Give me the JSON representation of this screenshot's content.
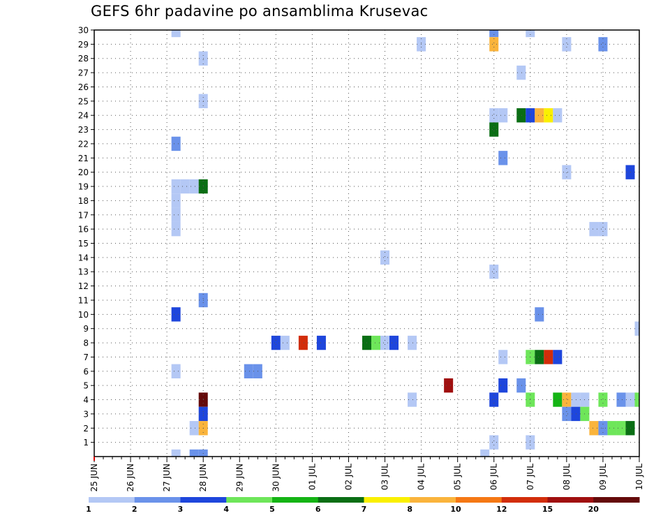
{
  "chart_data": {
    "type": "heatmap",
    "title": "GEFS 6hr padavine po ansamblima Krusevac",
    "y_ticks": [
      1,
      2,
      3,
      4,
      5,
      6,
      7,
      8,
      9,
      10,
      11,
      12,
      13,
      14,
      15,
      16,
      17,
      18,
      19,
      20,
      21,
      22,
      23,
      24,
      25,
      26,
      27,
      28,
      29,
      30
    ],
    "ylim": [
      0,
      30
    ],
    "x_ticks": [
      "25 JUN",
      "26 JUN",
      "27 JUN",
      "28 JUN",
      "29 JUN",
      "30 JUN",
      "01 JUL",
      "02 JUL",
      "03 JUL",
      "04 JUL",
      "05 JUL",
      "06 JUL",
      "07 JUL",
      "08 JUL",
      "09 JUL",
      "10 JUL"
    ],
    "xlim_steps": [
      0,
      60
    ],
    "step_hours": 6,
    "grid": true,
    "colorbar": {
      "levels": [
        "1",
        "2",
        "3",
        "4",
        "5",
        "6",
        "7",
        "8",
        "10",
        "12",
        "15",
        "20"
      ],
      "colors": [
        "#b4c8f5",
        "#6a92ea",
        "#1e46dc",
        "#6ee65a",
        "#14b414",
        "#0a6e14",
        "#faf000",
        "#fab43c",
        "#f57814",
        "#d22d0a",
        "#a00f0f",
        "#640a0a"
      ]
    },
    "cells": [
      {
        "member": 30,
        "step": 9,
        "cls": 0
      },
      {
        "member": 30,
        "step": 44,
        "cls": 1
      },
      {
        "member": 30,
        "step": 48,
        "cls": 0
      },
      {
        "member": 29,
        "step": 36,
        "cls": 0
      },
      {
        "member": 29,
        "step": 44,
        "cls": 7
      },
      {
        "member": 29,
        "step": 52,
        "cls": 0
      },
      {
        "member": 29,
        "step": 56,
        "cls": 1
      },
      {
        "member": 28,
        "step": 12,
        "cls": 0
      },
      {
        "member": 27,
        "step": 47,
        "cls": 0
      },
      {
        "member": 25,
        "step": 12,
        "cls": 0
      },
      {
        "member": 24,
        "step": 44,
        "cls": 0
      },
      {
        "member": 24,
        "step": 45,
        "cls": 0
      },
      {
        "member": 24,
        "step": 47,
        "cls": 5
      },
      {
        "member": 24,
        "step": 48,
        "cls": 2
      },
      {
        "member": 24,
        "step": 49,
        "cls": 7
      },
      {
        "member": 24,
        "step": 50,
        "cls": 6
      },
      {
        "member": 24,
        "step": 51,
        "cls": 0
      },
      {
        "member": 23,
        "step": 44,
        "cls": 5
      },
      {
        "member": 22,
        "step": 9,
        "cls": 1
      },
      {
        "member": 21,
        "step": 45,
        "cls": 1
      },
      {
        "member": 20,
        "step": 52,
        "cls": 0
      },
      {
        "member": 20,
        "step": 59,
        "cls": 2
      },
      {
        "member": 19,
        "step": 9,
        "cls": 0
      },
      {
        "member": 19,
        "step": 10,
        "cls": 0
      },
      {
        "member": 19,
        "step": 11,
        "cls": 0
      },
      {
        "member": 19,
        "step": 12,
        "cls": 5
      },
      {
        "member": 18,
        "step": 9,
        "cls": 0
      },
      {
        "member": 17,
        "step": 9,
        "cls": 0
      },
      {
        "member": 16,
        "step": 9,
        "cls": 0
      },
      {
        "member": 16,
        "step": 55,
        "cls": 0
      },
      {
        "member": 16,
        "step": 56,
        "cls": 0
      },
      {
        "member": 14,
        "step": 32,
        "cls": 0
      },
      {
        "member": 13,
        "step": 44,
        "cls": 0
      },
      {
        "member": 11,
        "step": 12,
        "cls": 1
      },
      {
        "member": 10,
        "step": 9,
        "cls": 2
      },
      {
        "member": 10,
        "step": 49,
        "cls": 1
      },
      {
        "member": 9,
        "step": 60,
        "cls": 0
      },
      {
        "member": 8,
        "step": 20,
        "cls": 2
      },
      {
        "member": 8,
        "step": 21,
        "cls": 0
      },
      {
        "member": 8,
        "step": 23,
        "cls": 9
      },
      {
        "member": 8,
        "step": 25,
        "cls": 2
      },
      {
        "member": 8,
        "step": 30,
        "cls": 5
      },
      {
        "member": 8,
        "step": 31,
        "cls": 3
      },
      {
        "member": 8,
        "step": 32,
        "cls": 0
      },
      {
        "member": 8,
        "step": 33,
        "cls": 2
      },
      {
        "member": 8,
        "step": 35,
        "cls": 0
      },
      {
        "member": 7,
        "step": 45,
        "cls": 0
      },
      {
        "member": 7,
        "step": 48,
        "cls": 3
      },
      {
        "member": 7,
        "step": 49,
        "cls": 5
      },
      {
        "member": 7,
        "step": 50,
        "cls": 9
      },
      {
        "member": 7,
        "step": 51,
        "cls": 2
      },
      {
        "member": 6,
        "step": 9,
        "cls": 0
      },
      {
        "member": 6,
        "step": 17,
        "cls": 1
      },
      {
        "member": 6,
        "step": 18,
        "cls": 1
      },
      {
        "member": 5,
        "step": 39,
        "cls": 10
      },
      {
        "member": 5,
        "step": 45,
        "cls": 2
      },
      {
        "member": 5,
        "step": 47,
        "cls": 1
      },
      {
        "member": 4,
        "step": 12,
        "cls": 11
      },
      {
        "member": 4,
        "step": 35,
        "cls": 0
      },
      {
        "member": 4,
        "step": 44,
        "cls": 2
      },
      {
        "member": 4,
        "step": 48,
        "cls": 3
      },
      {
        "member": 4,
        "step": 51,
        "cls": 4
      },
      {
        "member": 4,
        "step": 52,
        "cls": 7
      },
      {
        "member": 4,
        "step": 53,
        "cls": 0
      },
      {
        "member": 4,
        "step": 54,
        "cls": 0
      },
      {
        "member": 4,
        "step": 56,
        "cls": 3
      },
      {
        "member": 4,
        "step": 58,
        "cls": 1
      },
      {
        "member": 4,
        "step": 59,
        "cls": 0
      },
      {
        "member": 4,
        "step": 60,
        "cls": 3
      },
      {
        "member": 3,
        "step": 12,
        "cls": 2
      },
      {
        "member": 3,
        "step": 52,
        "cls": 1
      },
      {
        "member": 3,
        "step": 53,
        "cls": 2
      },
      {
        "member": 3,
        "step": 54,
        "cls": 3
      },
      {
        "member": 2,
        "step": 11,
        "cls": 0
      },
      {
        "member": 2,
        "step": 12,
        "cls": 7
      },
      {
        "member": 2,
        "step": 55,
        "cls": 7
      },
      {
        "member": 2,
        "step": 56,
        "cls": 1
      },
      {
        "member": 2,
        "step": 57,
        "cls": 3
      },
      {
        "member": 2,
        "step": 58,
        "cls": 3
      },
      {
        "member": 2,
        "step": 59,
        "cls": 5
      },
      {
        "member": 1,
        "step": 44,
        "cls": 0
      },
      {
        "member": 1,
        "step": 48,
        "cls": 0
      },
      {
        "member": 0,
        "step": 9,
        "cls": 0
      },
      {
        "member": 0,
        "step": 11,
        "cls": 1
      },
      {
        "member": 0,
        "step": 12,
        "cls": 1
      },
      {
        "member": 0,
        "step": 43,
        "cls": 0
      }
    ]
  }
}
